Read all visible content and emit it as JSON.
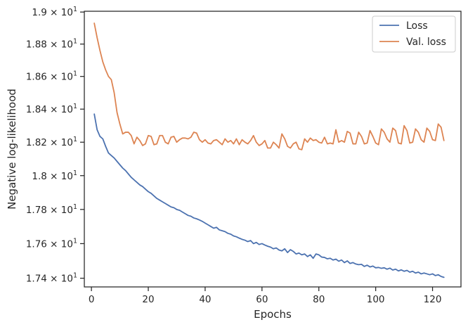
{
  "chart_data": {
    "type": "line",
    "title": "",
    "xlabel": "Epochs",
    "ylabel": "Negative log-likelihood",
    "xlim": [
      -2.5,
      130.0
    ],
    "ylim": [
      17.35,
      19.005
    ],
    "yscale": "log",
    "xticks": [
      0,
      20,
      40,
      60,
      80,
      100,
      120
    ],
    "yticks": [
      {
        "value": 17.4,
        "mantissa": "1.74",
        "base": "10",
        "exp": "1"
      },
      {
        "value": 17.6,
        "mantissa": "1.76",
        "base": "10",
        "exp": "1"
      },
      {
        "value": 17.8,
        "mantissa": "1.78",
        "base": "10",
        "exp": "1"
      },
      {
        "value": 18.0,
        "mantissa": "1.8",
        "base": "10",
        "exp": "1"
      },
      {
        "value": 18.2,
        "mantissa": "1.82",
        "base": "10",
        "exp": "1"
      },
      {
        "value": 18.4,
        "mantissa": "1.84",
        "base": "10",
        "exp": "1"
      },
      {
        "value": 18.6,
        "mantissa": "1.86",
        "base": "10",
        "exp": "1"
      },
      {
        "value": 18.8,
        "mantissa": "1.88",
        "base": "10",
        "exp": "1"
      },
      {
        "value": 19.0,
        "mantissa": "1.9",
        "base": "10",
        "exp": "1"
      }
    ],
    "grid": false,
    "legend_position": "top-right",
    "series": [
      {
        "name": "Loss",
        "color": "#4c72b0",
        "x": [
          1,
          2,
          3,
          4,
          5,
          6,
          7,
          8,
          9,
          10,
          11,
          12,
          13,
          14,
          15,
          16,
          17,
          18,
          19,
          20,
          21,
          22,
          23,
          24,
          25,
          26,
          27,
          28,
          29,
          30,
          31,
          32,
          33,
          34,
          35,
          36,
          37,
          38,
          39,
          40,
          41,
          42,
          43,
          44,
          45,
          46,
          47,
          48,
          49,
          50,
          51,
          52,
          53,
          54,
          55,
          56,
          57,
          58,
          59,
          60,
          61,
          62,
          63,
          64,
          65,
          66,
          67,
          68,
          69,
          70,
          71,
          72,
          73,
          74,
          75,
          76,
          77,
          78,
          79,
          80,
          81,
          82,
          83,
          84,
          85,
          86,
          87,
          88,
          89,
          90,
          91,
          92,
          93,
          94,
          95,
          96,
          97,
          98,
          99,
          100,
          101,
          102,
          103,
          104,
          105,
          106,
          107,
          108,
          109,
          110,
          111,
          112,
          113,
          114,
          115,
          116,
          117,
          118,
          119,
          120,
          121,
          122,
          123,
          124
        ],
        "values": [
          18.37,
          18.275,
          18.235,
          18.22,
          18.175,
          18.135,
          18.12,
          18.105,
          18.085,
          18.065,
          18.045,
          18.03,
          18.01,
          17.99,
          17.975,
          17.96,
          17.945,
          17.935,
          17.92,
          17.905,
          17.895,
          17.88,
          17.865,
          17.855,
          17.845,
          17.835,
          17.825,
          17.815,
          17.81,
          17.8,
          17.795,
          17.785,
          17.775,
          17.765,
          17.76,
          17.75,
          17.745,
          17.738,
          17.73,
          17.72,
          17.71,
          17.7,
          17.69,
          17.695,
          17.68,
          17.675,
          17.67,
          17.66,
          17.655,
          17.645,
          17.64,
          17.632,
          17.625,
          17.62,
          17.612,
          17.618,
          17.6,
          17.607,
          17.595,
          17.6,
          17.592,
          17.585,
          17.58,
          17.57,
          17.575,
          17.563,
          17.558,
          17.57,
          17.548,
          17.565,
          17.555,
          17.54,
          17.545,
          17.535,
          17.54,
          17.525,
          17.535,
          17.515,
          17.54,
          17.535,
          17.522,
          17.52,
          17.512,
          17.515,
          17.505,
          17.51,
          17.498,
          17.505,
          17.49,
          17.5,
          17.485,
          17.49,
          17.482,
          17.478,
          17.48,
          17.468,
          17.475,
          17.465,
          17.47,
          17.46,
          17.462,
          17.457,
          17.46,
          17.452,
          17.458,
          17.447,
          17.452,
          17.442,
          17.448,
          17.44,
          17.445,
          17.435,
          17.44,
          17.43,
          17.435,
          17.425,
          17.43,
          17.425,
          17.42,
          17.425,
          17.415,
          17.42,
          17.41,
          17.405
        ]
      },
      {
        "name": "Val. loss",
        "color": "#dd8452",
        "x": [
          1,
          2,
          3,
          4,
          5,
          6,
          7,
          8,
          9,
          10,
          11,
          12,
          13,
          14,
          15,
          16,
          17,
          18,
          19,
          20,
          21,
          22,
          23,
          24,
          25,
          26,
          27,
          28,
          29,
          30,
          31,
          32,
          33,
          34,
          35,
          36,
          37,
          38,
          39,
          40,
          41,
          42,
          43,
          44,
          45,
          46,
          47,
          48,
          49,
          50,
          51,
          52,
          53,
          54,
          55,
          56,
          57,
          58,
          59,
          60,
          61,
          62,
          63,
          64,
          65,
          66,
          67,
          68,
          69,
          70,
          71,
          72,
          73,
          74,
          75,
          76,
          77,
          78,
          79,
          80,
          81,
          82,
          83,
          84,
          85,
          86,
          87,
          88,
          89,
          90,
          91,
          92,
          93,
          94,
          95,
          96,
          97,
          98,
          99,
          100,
          101,
          102,
          103,
          104,
          105,
          106,
          107,
          108,
          109,
          110,
          111,
          112,
          113,
          114,
          115,
          116,
          117,
          118,
          119,
          120,
          121,
          122,
          123,
          124
        ],
        "values": [
          18.93,
          18.84,
          18.76,
          18.69,
          18.64,
          18.6,
          18.58,
          18.5,
          18.38,
          18.31,
          18.25,
          18.26,
          18.26,
          18.24,
          18.19,
          18.23,
          18.21,
          18.18,
          18.19,
          18.24,
          18.235,
          18.185,
          18.19,
          18.24,
          18.24,
          18.2,
          18.19,
          18.23,
          18.235,
          18.2,
          18.215,
          18.225,
          18.225,
          18.22,
          18.23,
          18.26,
          18.255,
          18.215,
          18.2,
          18.215,
          18.195,
          18.19,
          18.21,
          18.215,
          18.2,
          18.185,
          18.22,
          18.2,
          18.21,
          18.19,
          18.22,
          18.185,
          18.215,
          18.2,
          18.19,
          18.21,
          18.24,
          18.2,
          18.18,
          18.19,
          18.21,
          18.165,
          18.165,
          18.2,
          18.185,
          18.165,
          18.25,
          18.22,
          18.175,
          18.165,
          18.19,
          18.2,
          18.16,
          18.155,
          18.22,
          18.2,
          18.225,
          18.21,
          18.215,
          18.2,
          18.195,
          18.23,
          18.19,
          18.195,
          18.19,
          18.275,
          18.2,
          18.21,
          18.2,
          18.265,
          18.255,
          18.19,
          18.19,
          18.26,
          18.235,
          18.19,
          18.195,
          18.27,
          18.235,
          18.195,
          18.185,
          18.28,
          18.26,
          18.22,
          18.2,
          18.285,
          18.27,
          18.195,
          18.19,
          18.3,
          18.27,
          18.195,
          18.2,
          18.28,
          18.26,
          18.215,
          18.2,
          18.285,
          18.265,
          18.215,
          18.21,
          18.31,
          18.29,
          18.21
        ]
      }
    ]
  }
}
